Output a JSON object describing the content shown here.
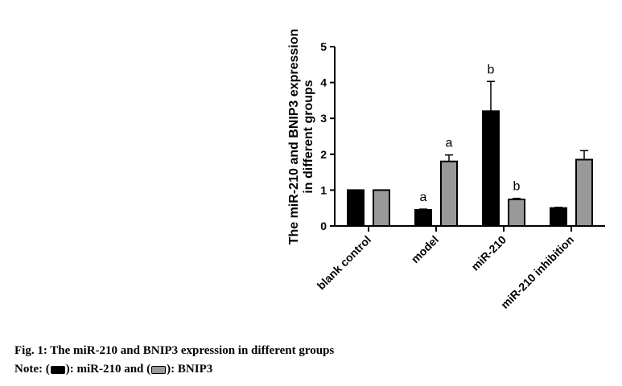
{
  "chart_data": {
    "type": "bar",
    "ylabel_lines": [
      "The miR-210 and BNIP3 expression",
      "in different groups"
    ],
    "xlabel": "",
    "ylim": [
      0,
      5
    ],
    "yticks": [
      "0",
      "1",
      "2",
      "3",
      "4",
      "5"
    ],
    "categories": [
      "blank control",
      "model",
      "miR-210",
      "miR-210 inhibition"
    ],
    "series": [
      {
        "name": "miR-210",
        "color": "#000000",
        "values": [
          1.0,
          0.45,
          3.2,
          0.5
        ],
        "errors": [
          0,
          0.02,
          0.83,
          0.02
        ],
        "annotations": [
          "",
          "a",
          "b",
          ""
        ]
      },
      {
        "name": "BNIP3",
        "color": "#999999",
        "values": [
          1.0,
          1.8,
          0.74,
          1.85
        ],
        "errors": [
          0,
          0.18,
          0.03,
          0.25
        ],
        "annotations": [
          "",
          "a",
          "b",
          ""
        ]
      }
    ],
    "grid": false,
    "legend": "none"
  },
  "caption": {
    "title": "Fig. 1: The miR-210 and BNIP3 expression in different groups",
    "note_prefix": "Note: (",
    "note_mid1": "): miR-210 and (",
    "note_mid2": "): BNIP3"
  }
}
